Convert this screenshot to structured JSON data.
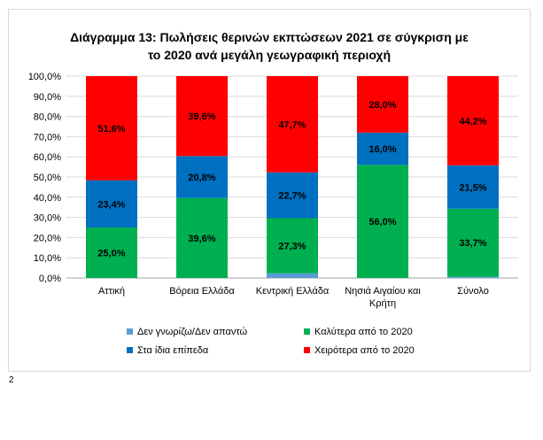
{
  "colors": {
    "dont_know": "#5b9bd5",
    "better": "#00b050",
    "same": "#0070c0",
    "worse": "#ff0000",
    "grid": "#d9d9d9",
    "axis": "#a6a6a6"
  },
  "page_number": "2",
  "chart_data": {
    "type": "bar",
    "stacked": true,
    "title_lines": [
      "Διάγραμμα 13: Πωλήσεις θερινών εκπτώσεων 2021 σε σύγκριση με",
      "το 2020 ανά μεγάλη γεωγραφική περιοχή"
    ],
    "categories": [
      [
        "Αττική"
      ],
      [
        "Βόρεια Ελλάδα"
      ],
      [
        "Κεντρική Ελλάδα"
      ],
      [
        "Νησιά Αιγαίου και",
        "Κρήτη"
      ],
      [
        "Σύνολο"
      ]
    ],
    "series": [
      {
        "name": "Δεν γνωρίζω/Δεν απαντώ",
        "color_key": "dont_know",
        "values": [
          0.0,
          0.0,
          2.3,
          0.0,
          0.6
        ],
        "labels": [
          "",
          "",
          "",
          "",
          ""
        ]
      },
      {
        "name": "Καλύτερα από το 2020",
        "color_key": "better",
        "values": [
          25.0,
          39.6,
          27.3,
          56.0,
          33.7
        ],
        "labels": [
          "25,0%",
          "39,6%",
          "27,3%",
          "56,0%",
          "33,7%"
        ]
      },
      {
        "name": "Στα ίδια επίπεδα",
        "color_key": "same",
        "values": [
          23.4,
          20.8,
          22.7,
          16.0,
          21.5
        ],
        "labels": [
          "23,4%",
          "20,8%",
          "22,7%",
          "16,0%",
          "21,5%"
        ]
      },
      {
        "name": "Χειρότερα από το 2020",
        "color_key": "worse",
        "values": [
          51.6,
          39.6,
          47.7,
          28.0,
          44.2
        ],
        "labels": [
          "51,6%",
          "39,6%",
          "47,7%",
          "28,0%",
          "44,2%"
        ]
      }
    ],
    "ylim": [
      0,
      100
    ],
    "y_ticks": [
      {
        "value": 0,
        "label": "0,0%"
      },
      {
        "value": 10,
        "label": "10,0%"
      },
      {
        "value": 20,
        "label": "20,0%"
      },
      {
        "value": 30,
        "label": "30,0%"
      },
      {
        "value": 40,
        "label": "40,0%"
      },
      {
        "value": 50,
        "label": "50,0%"
      },
      {
        "value": 60,
        "label": "60,0%"
      },
      {
        "value": 70,
        "label": "70,0%"
      },
      {
        "value": 80,
        "label": "80,0%"
      },
      {
        "value": 90,
        "label": "90,0%"
      },
      {
        "value": 100,
        "label": "100,0%"
      }
    ],
    "grid": true,
    "legend_position": "bottom",
    "legend_order": [
      0,
      1,
      2,
      3
    ]
  }
}
